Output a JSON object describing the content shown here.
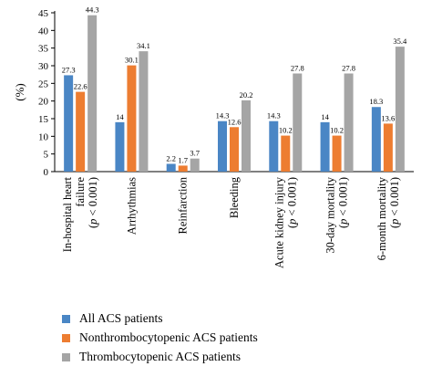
{
  "chart_data": {
    "type": "bar",
    "ylabel": "(%)",
    "ylim": [
      0,
      45
    ],
    "yticks": [
      0,
      5,
      10,
      15,
      20,
      25,
      30,
      35,
      40,
      45
    ],
    "categories": [
      {
        "lines": [
          "In-hospital heart",
          "failure",
          "(p < 0.001)"
        ]
      },
      {
        "lines": [
          "Arrhythmias"
        ]
      },
      {
        "lines": [
          "Reinfarction"
        ]
      },
      {
        "lines": [
          "Bleeding"
        ]
      },
      {
        "lines": [
          "Acute kidney injury",
          "(p < 0.001)"
        ]
      },
      {
        "lines": [
          "30-day mortality",
          "(p < 0.001)"
        ]
      },
      {
        "lines": [
          "6-month mortality",
          "(p < 0.001)"
        ]
      }
    ],
    "series": [
      {
        "name": "All ACS patients",
        "color": "#4a86c5",
        "values": [
          27.3,
          14,
          2.2,
          14.3,
          14.3,
          14,
          18.3
        ],
        "labels": [
          "27.3",
          "14",
          "2.2",
          "14.3",
          "14.3",
          "14",
          "18.3"
        ]
      },
      {
        "name": "Nonthrombocytopenic ACS patients",
        "color": "#ed7d31",
        "values": [
          22.6,
          30.1,
          1.7,
          12.6,
          10.2,
          10.2,
          13.6
        ],
        "labels": [
          "22.6",
          "30.1",
          "1.7",
          "12.6",
          "10.2",
          "10.2",
          "13.6"
        ]
      },
      {
        "name": "Thrombocytopenic ACS patients",
        "color": "#a5a5a5",
        "values": [
          44.3,
          34.1,
          3.7,
          20.2,
          27.8,
          27.8,
          35.4
        ],
        "labels": [
          "44.3",
          "34.1",
          "3.7",
          "20.2",
          "27.8",
          "27.8",
          "35.4"
        ]
      }
    ]
  }
}
